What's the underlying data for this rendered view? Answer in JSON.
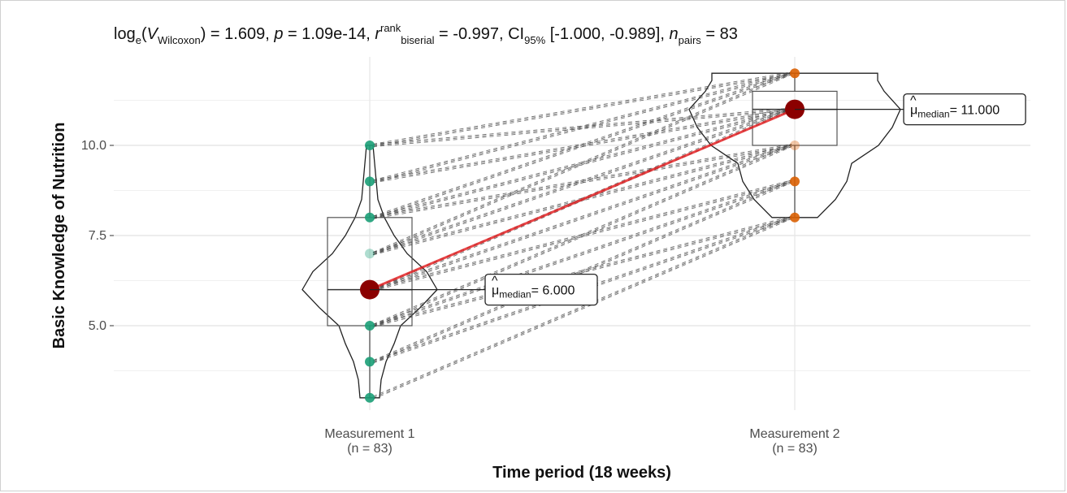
{
  "chart_data": {
    "type": "violin-paired",
    "title": {
      "parts": [
        {
          "t": "log"
        },
        {
          "t": "e",
          "sub": true
        },
        {
          "t": "("
        },
        {
          "t": "V",
          "italic": true
        },
        {
          "t": "Wilcoxon",
          "sub": true
        },
        {
          "t": ") = 1.609, "
        },
        {
          "t": "p",
          "italic": true
        },
        {
          "t": " = 1.09e-14, "
        },
        {
          "t": "r",
          "italic": true,
          "hat": true
        },
        {
          "t": "rank",
          "sup": true
        },
        {
          "t": "biserial",
          "sub": true
        },
        {
          "t": " = -0.997, CI"
        },
        {
          "t": "95%",
          "sub": true
        },
        {
          "t": " [-1.000, -0.989], "
        },
        {
          "t": "n",
          "italic": true
        },
        {
          "t": "pairs",
          "sub": true
        },
        {
          "t": " = 83"
        }
      ]
    },
    "xlabel": "Time period (18 weeks)",
    "ylabel": "Basic Knowledge of Nutrition",
    "y_ticks": [
      "5.0",
      "7.5",
      "10.0"
    ],
    "y_tick_values": [
      5.0,
      7.5,
      10.0
    ],
    "ylim": [
      2.4,
      12.3
    ],
    "grid": true,
    "categories": [
      {
        "name": "Measurement 1",
        "n_label": "(n = 83)",
        "color": "#1b9e77",
        "median": 6.0,
        "q1": 5.0,
        "q3": 8.0,
        "points": [
          3,
          4,
          5,
          6,
          7,
          8,
          9,
          10
        ]
      },
      {
        "name": "Measurement 2",
        "n_label": "(n = 83)",
        "color": "#d95f02",
        "median": 11.0,
        "q1": 10.0,
        "q3": 11.5,
        "points": [
          8,
          9,
          10,
          11,
          12
        ]
      }
    ],
    "median_labels": [
      {
        "prefix": "μ",
        "sub": "median",
        "value": "= 6.000"
      },
      {
        "prefix": "μ",
        "sub": "median",
        "value": "= 11.000"
      }
    ],
    "pairs": [
      [
        3,
        8
      ],
      [
        4,
        8
      ],
      [
        4,
        9
      ],
      [
        5,
        8
      ],
      [
        5,
        9
      ],
      [
        5,
        10
      ],
      [
        6,
        9
      ],
      [
        6,
        10
      ],
      [
        6,
        11
      ],
      [
        7,
        10
      ],
      [
        7,
        11
      ],
      [
        7,
        12
      ],
      [
        8,
        10
      ],
      [
        8,
        11
      ],
      [
        8,
        12
      ],
      [
        9,
        11
      ],
      [
        9,
        12
      ],
      [
        10,
        11
      ],
      [
        10,
        12
      ]
    ],
    "median_line_color": "#e41a1c",
    "median_point_color": "#8b0000"
  }
}
